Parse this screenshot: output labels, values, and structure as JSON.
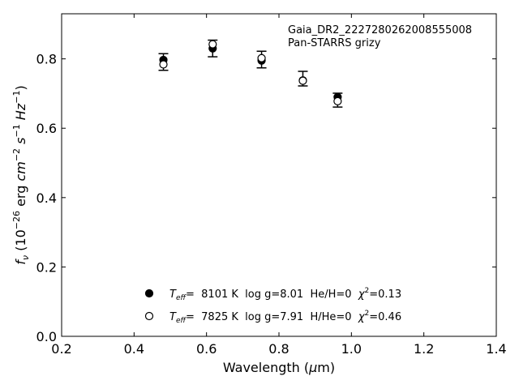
{
  "chart_data": {
    "type": "scatter",
    "title": "",
    "xlabel": "Wavelength (μm)",
    "ylabel": "f_ν (10^-26 erg cm^-2 s^-1 Hz^-1)",
    "xlim": [
      0.2,
      1.4
    ],
    "ylim": [
      0.0,
      0.93
    ],
    "xticks": [
      "0.2",
      "0.4",
      "0.6",
      "0.8",
      "1.0",
      "1.2",
      "1.4"
    ],
    "yticks": [
      "0.0",
      "0.2",
      "0.4",
      "0.6",
      "0.8"
    ],
    "annotation": [
      "Gaia_DR2_2227280262008555008",
      "Pan-STARRS grizy"
    ],
    "observed": {
      "x": [
        0.481,
        0.617,
        0.752,
        0.866,
        0.962
      ],
      "y": [
        0.791,
        0.83,
        0.798,
        0.743,
        0.681
      ],
      "yerr": [
        0.024,
        0.024,
        0.024,
        0.021,
        0.02
      ]
    },
    "series": [
      {
        "name": "Teff= 8101 K log g=8.01 He/H=0 χ2=0.13",
        "marker": "filled",
        "x": [
          0.481,
          0.617,
          0.752,
          0.866,
          0.962
        ],
        "y": [
          0.797,
          0.83,
          0.795,
          0.738,
          0.69
        ]
      },
      {
        "name": "Teff= 7825 K log g=7.91 H/He=0 χ2=0.46",
        "marker": "open",
        "x": [
          0.481,
          0.617,
          0.752,
          0.866,
          0.962
        ],
        "y": [
          0.784,
          0.842,
          0.802,
          0.737,
          0.678
        ]
      }
    ],
    "legend": {
      "placement": "lower-center",
      "entries": [
        {
          "teff_label": "T",
          "teff_sub": "eff",
          "teff_rest": "=  8101 K  log g=8.01  He/H=0  ",
          "chi": "χ",
          "chi_sup": "2",
          "chi_rest": "=0.13"
        },
        {
          "teff_label": "T",
          "teff_sub": "eff",
          "teff_rest": "=  7825 K  log g=7.91  H/He=0  ",
          "chi": "χ",
          "chi_sup": "2",
          "chi_rest": "=0.46"
        }
      ]
    },
    "grid": false
  }
}
